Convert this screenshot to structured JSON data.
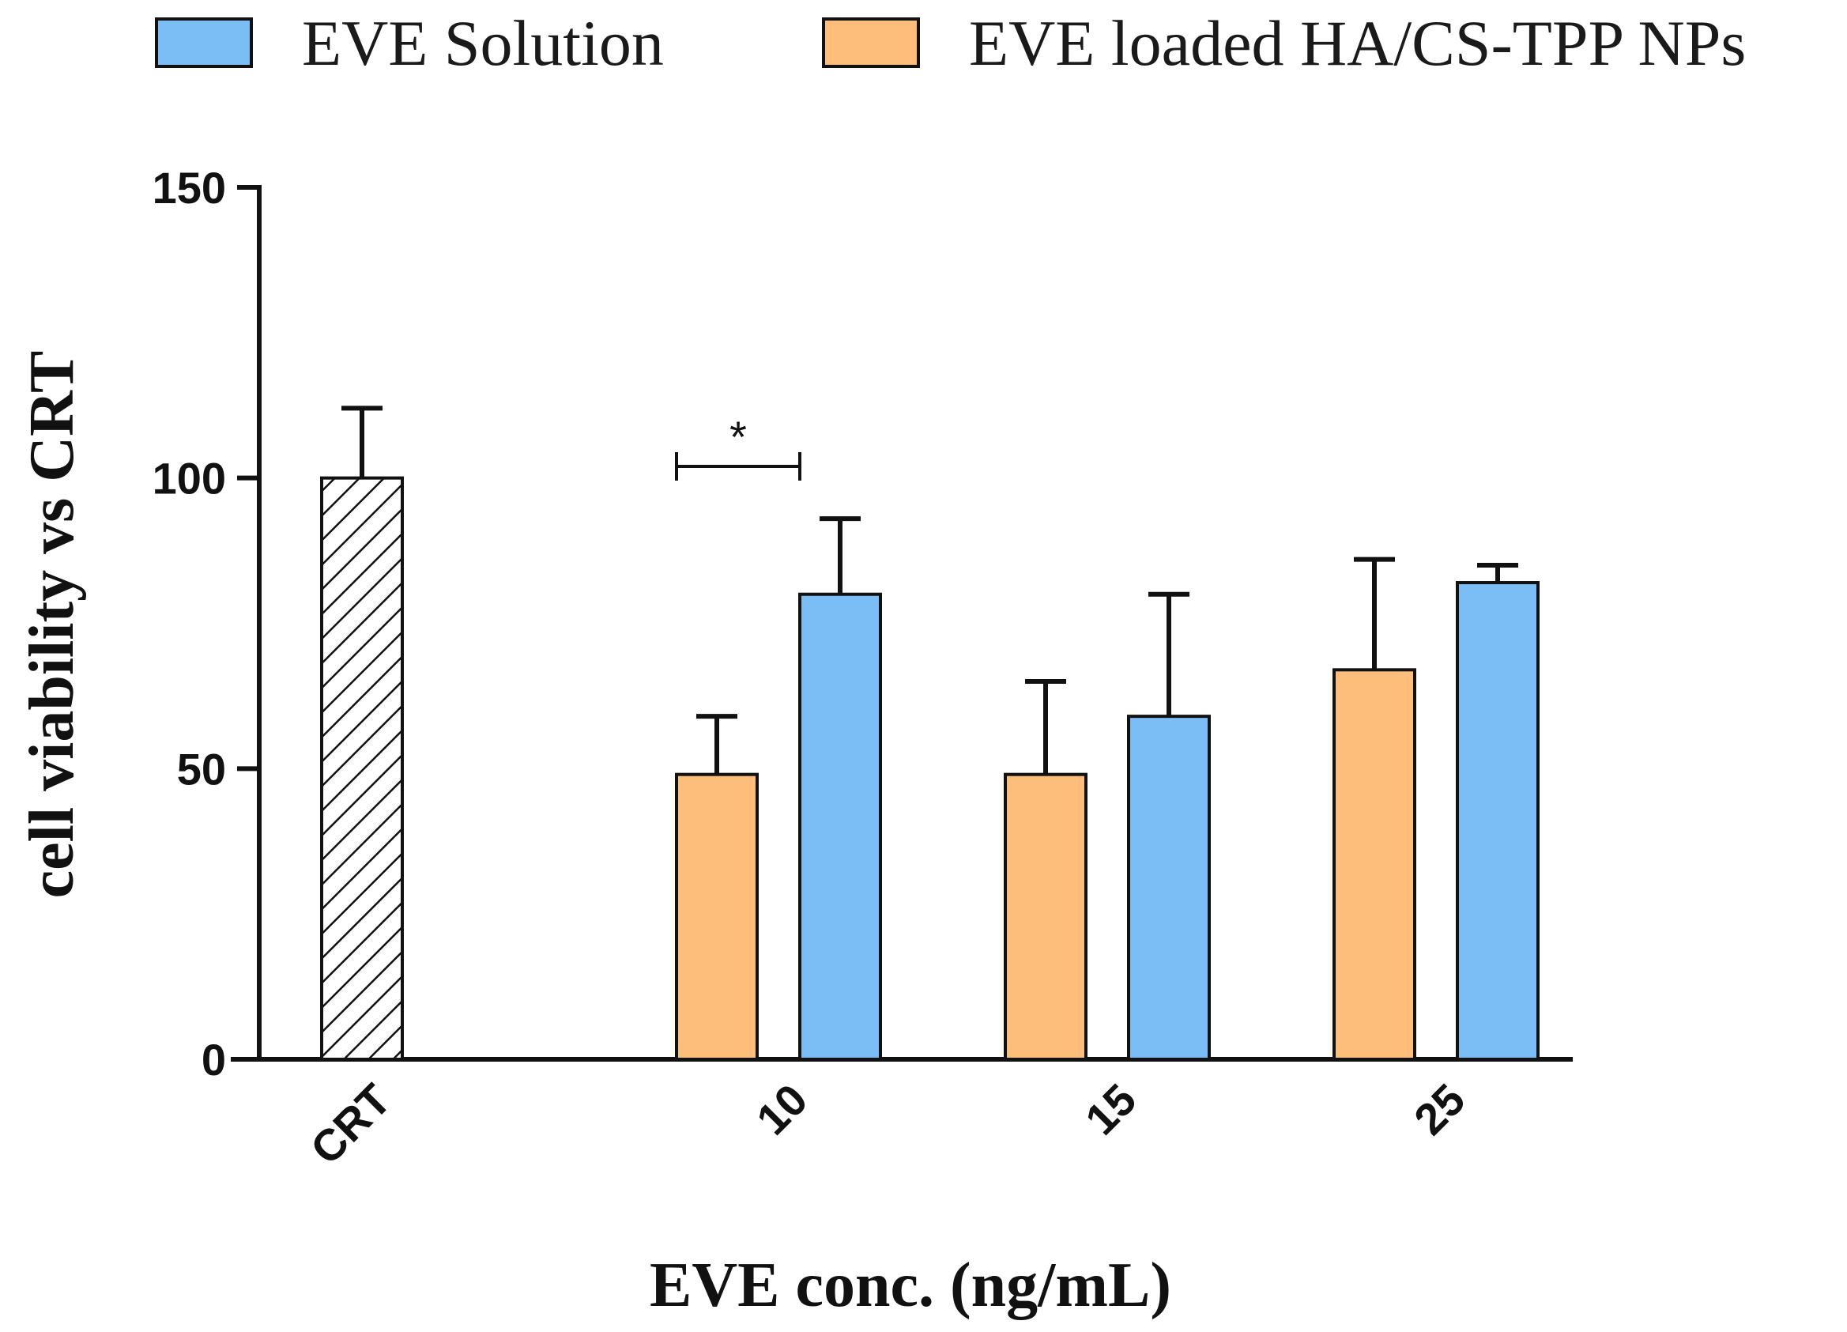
{
  "chart_data": {
    "type": "bar",
    "ylabel": "cell viability vs CRT",
    "xlabel": "EVE conc. (ng/mL)",
    "ylim": [
      0,
      150
    ],
    "yticks": [
      0,
      50,
      100,
      150
    ],
    "grid": false,
    "legend_position": "top",
    "categories": [
      "CRT",
      "10",
      "15",
      "25"
    ],
    "series": [
      {
        "name": "EVE loaded HA/CS-TPP NPs",
        "color": "#FDBE7C",
        "pattern": "solid",
        "values": [
          null,
          49,
          49,
          67
        ],
        "errors": [
          null,
          10,
          16,
          19
        ]
      },
      {
        "name": "EVE Solution",
        "color": "#7BBDF5",
        "pattern": "solid",
        "values": [
          null,
          80,
          59,
          82
        ],
        "errors": [
          null,
          13,
          21,
          3
        ]
      },
      {
        "name": "CRT",
        "color": "#ffffff",
        "pattern": "hatched",
        "values": [
          100,
          null,
          null,
          null
        ],
        "errors": [
          12,
          null,
          null,
          null
        ]
      }
    ],
    "legend": [
      {
        "label": "EVE Solution",
        "color": "#7BBDF5"
      },
      {
        "label": "EVE loaded HA/CS-TPP NPs",
        "color": "#FDBE7C"
      }
    ],
    "annotations": [
      {
        "text": "*",
        "between": [
          "EVE loaded HA/CS-TPP NPs",
          "EVE Solution"
        ],
        "category": "10",
        "y": 102
      }
    ]
  }
}
